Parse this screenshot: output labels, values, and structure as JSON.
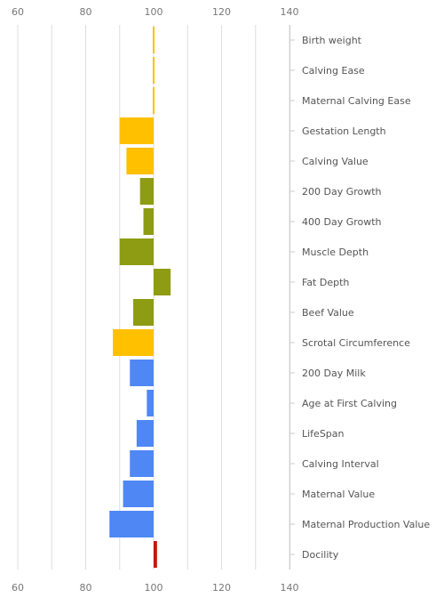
{
  "chart_data": {
    "type": "bar",
    "orientation": "horizontal",
    "baseline": 100,
    "xlim": [
      60,
      140
    ],
    "x_ticks": [
      60,
      80,
      100,
      120,
      140
    ],
    "x_tick_labels": [
      "60",
      "80",
      "100",
      "120",
      "140"
    ],
    "x_tick_positions": [
      "top",
      "bottom"
    ],
    "grid": true,
    "legend": "none",
    "categories": [
      "Birth weight",
      "Calving Ease",
      "Maternal Calving Ease",
      "Gestation Length",
      "Calving Value",
      "200 Day Growth",
      "400 Day Growth",
      "Muscle Depth",
      "Fat Depth",
      "Beef Value",
      "Scrotal Circumference",
      "200 Day Milk",
      "Age at First Calving",
      "LifeSpan",
      "Calving Interval",
      "Maternal Value",
      "Maternal Production Value",
      "Docility"
    ],
    "values": [
      100,
      100,
      100,
      90,
      92,
      96,
      97,
      90,
      105,
      94,
      88,
      93,
      98,
      95,
      93,
      91,
      87,
      101
    ],
    "bar_colors": [
      "#FFC000",
      "#FFC000",
      "#FFC000",
      "#FFC000",
      "#FFC000",
      "#8D9C12",
      "#8D9C12",
      "#8D9C12",
      "#8D9C12",
      "#8D9C12",
      "#FFC000",
      "#4F87F5",
      "#4F87F5",
      "#4F87F5",
      "#4F87F5",
      "#4F87F5",
      "#4F87F5",
      "#C0180C"
    ],
    "grid_color": "#dddddd"
  }
}
